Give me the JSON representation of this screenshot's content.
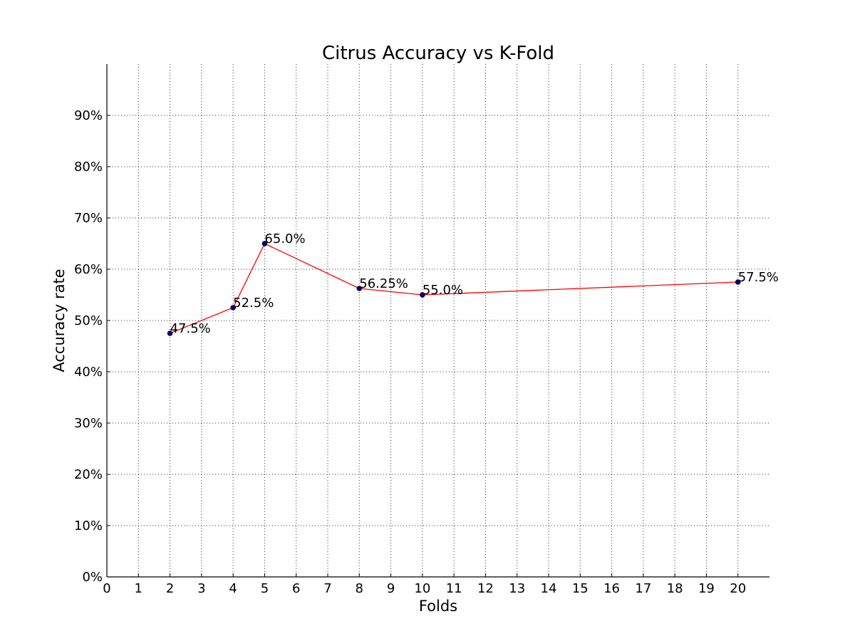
{
  "chart_data": {
    "type": "line",
    "title": "Citrus Accuracy vs K-Fold",
    "xlabel": "Folds",
    "ylabel": "Accuracy rate",
    "xlim": [
      0,
      21
    ],
    "ylim": [
      0,
      100
    ],
    "grid": true,
    "x_ticks": [
      0,
      1,
      2,
      3,
      4,
      5,
      6,
      7,
      8,
      9,
      10,
      11,
      12,
      13,
      14,
      15,
      16,
      17,
      18,
      19,
      20
    ],
    "y_ticks": [
      0,
      10,
      20,
      30,
      40,
      50,
      60,
      70,
      80,
      90
    ],
    "y_tick_labels": [
      "0%",
      "10%",
      "20%",
      "30%",
      "40%",
      "50%",
      "60%",
      "70%",
      "80%",
      "90%"
    ],
    "series": [
      {
        "x": [
          2,
          4,
          5,
          8,
          10,
          20
        ],
        "values": [
          47.5,
          52.5,
          65.0,
          56.25,
          55.0,
          57.5
        ],
        "labels": [
          "47.5%",
          "52.5%",
          "65.0%",
          "56.25%",
          "55.0%",
          "57.5%"
        ],
        "line_color": "#ff0000",
        "marker_color": "#00007f"
      }
    ]
  }
}
